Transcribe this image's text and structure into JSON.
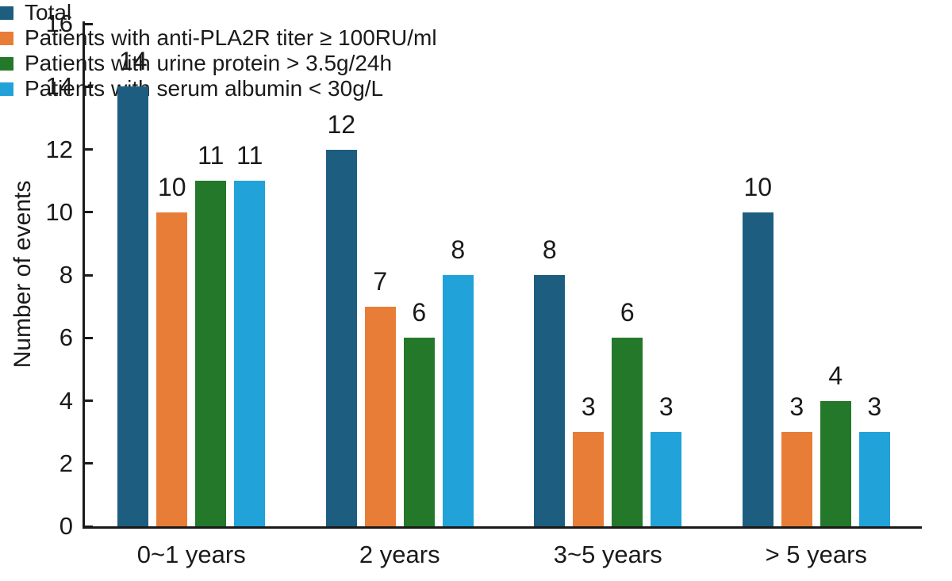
{
  "chart_data": {
    "type": "bar",
    "title": "",
    "xlabel": "",
    "ylabel": "Number of events",
    "ylim": [
      0,
      16
    ],
    "yticks": [
      0,
      2,
      4,
      6,
      8,
      10,
      12,
      14,
      16
    ],
    "ytick_step": 2,
    "grid": false,
    "legend_position": "top-right",
    "bar_value_labels": true,
    "categories": [
      "0~1 years",
      "2 years",
      "3~5 years",
      "> 5 years"
    ],
    "series": [
      {
        "name": "Total",
        "color": "#1d5e80",
        "values": [
          14,
          12,
          8,
          10
        ]
      },
      {
        "name": "Patients with anti-PLA2R titer ≥ 100RU/ml",
        "color": "#e87d38",
        "values": [
          10,
          7,
          3,
          3
        ]
      },
      {
        "name": "Patients with urine protein > 3.5g/24h",
        "color": "#24782a",
        "values": [
          11,
          6,
          6,
          4
        ]
      },
      {
        "name": "Patients with serum albumin < 30g/L",
        "color": "#21a2d8",
        "values": [
          11,
          8,
          3,
          3
        ]
      }
    ]
  },
  "colors": {
    "axis": "#1a1a1a",
    "text": "#1a1a1a",
    "background": "#ffffff"
  }
}
